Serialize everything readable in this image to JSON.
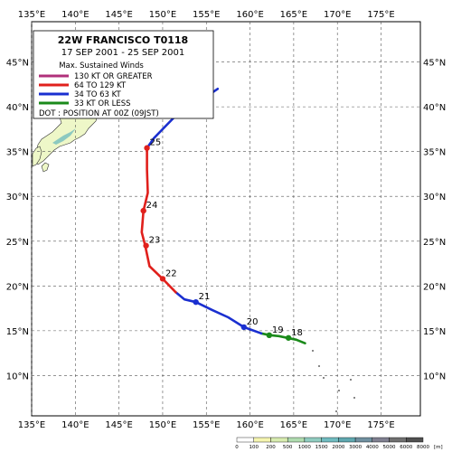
{
  "legend": {
    "storm_title": "22W  FRANCISCO  T0118",
    "date_range": "17 SEP 2001 - 25 SEP 2001",
    "heading": "Max. Sustained Winds",
    "entries": [
      {
        "label": "130 KT OR GREATER",
        "color": "#b0307a"
      },
      {
        "label": "64 TO 129 KT",
        "color": "#e0201c"
      },
      {
        "label": "34 TO 63 KT",
        "color": "#1a2fd0"
      },
      {
        "label": "33 KT OR LESS",
        "color": "#1a8a1a"
      }
    ],
    "dot_note": "DOT : POSITION AT 00Z (09JST)"
  },
  "axes": {
    "lon_labels": [
      "135°E",
      "140°E",
      "145°E",
      "150°E",
      "155°E",
      "160°E",
      "165°E",
      "170°E",
      "175°E"
    ],
    "lat_labels": [
      "10°N",
      "15°N",
      "20°N",
      "25°N",
      "30°N",
      "35°N",
      "40°N",
      "45°N"
    ],
    "lon_values": [
      135,
      140,
      145,
      150,
      155,
      160,
      165,
      170,
      175
    ],
    "lat_values": [
      10,
      15,
      20,
      25,
      30,
      35,
      40,
      45
    ],
    "lon_range": [
      135,
      179.5
    ],
    "lat_range": [
      5.5,
      49.5
    ]
  },
  "track": {
    "segments": [
      {
        "intensity": "33 KT OR LESS",
        "color": "#1a8a1a",
        "points": [
          [
            166.3,
            13.6
          ],
          [
            165.3,
            14.0
          ],
          [
            164.3,
            14.2
          ],
          [
            163.3,
            14.4
          ],
          [
            162.3,
            14.5
          ],
          [
            161.3,
            14.7
          ]
        ]
      },
      {
        "intensity": "34 TO 63 KT",
        "color": "#1a2fd0",
        "points": [
          [
            161.3,
            14.7
          ],
          [
            159.3,
            15.4
          ],
          [
            157.5,
            16.5
          ],
          [
            155.7,
            17.3
          ],
          [
            153.8,
            18.2
          ],
          [
            152.5,
            18.5
          ],
          [
            151.5,
            19.3
          ]
        ]
      },
      {
        "intensity": "64 TO 129 KT",
        "color": "#e0201c",
        "points": [
          [
            151.5,
            19.3
          ],
          [
            150.0,
            20.8
          ],
          [
            148.5,
            22.2
          ],
          [
            148.0,
            24.5
          ],
          [
            147.6,
            26.0
          ],
          [
            147.8,
            28.4
          ],
          [
            148.3,
            30.4
          ],
          [
            148.2,
            33.0
          ],
          [
            148.2,
            35.4
          ]
        ]
      },
      {
        "intensity": "34 TO 63 KT",
        "color": "#1a2fd0",
        "points": [
          [
            148.2,
            35.4
          ],
          [
            149.0,
            36.5
          ],
          [
            150.0,
            37.5
          ],
          [
            151.5,
            39.0
          ],
          [
            153.0,
            40.0
          ],
          [
            154.5,
            40.8
          ],
          [
            156.3,
            42.0
          ]
        ]
      }
    ],
    "positions": [
      {
        "day": "18",
        "lon": 164.4,
        "lat": 14.2,
        "color": "#1a8a1a"
      },
      {
        "day": "19",
        "lon": 162.2,
        "lat": 14.5,
        "color": "#1a8a1a"
      },
      {
        "day": "20",
        "lon": 159.3,
        "lat": 15.4,
        "color": "#1a2fd0"
      },
      {
        "day": "21",
        "lon": 153.8,
        "lat": 18.2,
        "color": "#1a2fd0"
      },
      {
        "day": "22",
        "lon": 150.0,
        "lat": 20.8,
        "color": "#e0201c"
      },
      {
        "day": "23",
        "lon": 148.1,
        "lat": 24.5,
        "color": "#e0201c"
      },
      {
        "day": "24",
        "lon": 147.8,
        "lat": 28.4,
        "color": "#e0201c"
      },
      {
        "day": "25",
        "lon": 148.2,
        "lat": 35.4,
        "color": "#e0201c"
      }
    ]
  },
  "elevation_scale": {
    "labels": [
      "0",
      "100",
      "200",
      "500",
      "1000",
      "1500",
      "2000",
      "3000",
      "4000",
      "5000",
      "6000",
      "8000"
    ],
    "unit": "[m]",
    "colors": [
      "#ffffff",
      "#f5f5b0",
      "#d8ecb0",
      "#b0dcb0",
      "#90ccc0",
      "#70bcc0",
      "#60a8b0",
      "#7090a0",
      "#808090",
      "#707070",
      "#505050"
    ]
  }
}
